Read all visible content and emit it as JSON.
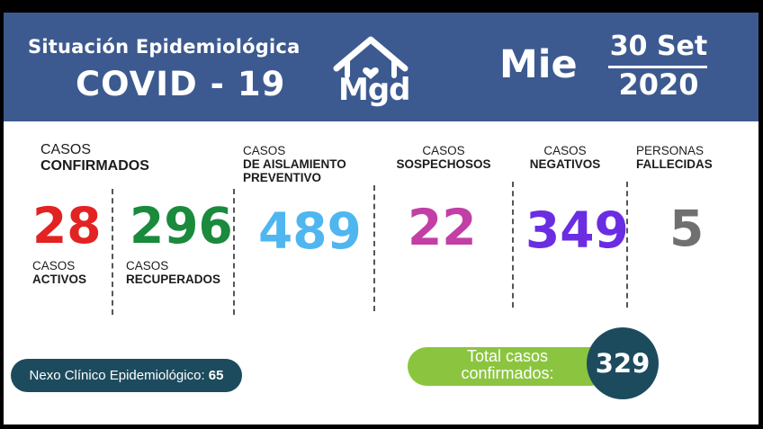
{
  "header": {
    "title_line1": "Situación Epidemiológica",
    "title_line2": "COVID - 19",
    "logo_text": "Mgd",
    "logo_icon": "house-heart-icon",
    "day": "Mie",
    "date_line1": "30 Set",
    "date_line2": "2020",
    "background_color": "#3c5a90"
  },
  "stats": {
    "confirmed_label_1": "CASOS",
    "confirmed_label_2": "CONFIRMADOS",
    "active": {
      "value": "28",
      "label_1": "CASOS",
      "label_2": "ACTIVOS",
      "color": "#e32222"
    },
    "recovered": {
      "value": "296",
      "label_1": "CASOS",
      "label_2": "RECUPERADOS",
      "color": "#1a8a3d"
    },
    "isolation": {
      "value": "489",
      "label_1": "CASOS",
      "label_2": "DE AISLAMIENTO",
      "label_3": "PREVENTIVO",
      "color": "#4fb6f0"
    },
    "suspected": {
      "value": "22",
      "label_1": "CASOS",
      "label_2": "SOSPECHOSOS",
      "color": "#c23fa6"
    },
    "negative": {
      "value": "349",
      "label_1": "CASOS",
      "label_2": "NEGATIVOS",
      "color": "#6a2de2"
    },
    "deceased": {
      "value": "5",
      "label_1": "PERSONAS",
      "label_2": "FALLECIDAS",
      "color": "#707070"
    }
  },
  "nexo": {
    "label": "Nexo Clínico Epidemiológico:",
    "value": "65"
  },
  "total": {
    "label_1": "Total casos",
    "label_2": "confirmados:",
    "value": "329"
  }
}
